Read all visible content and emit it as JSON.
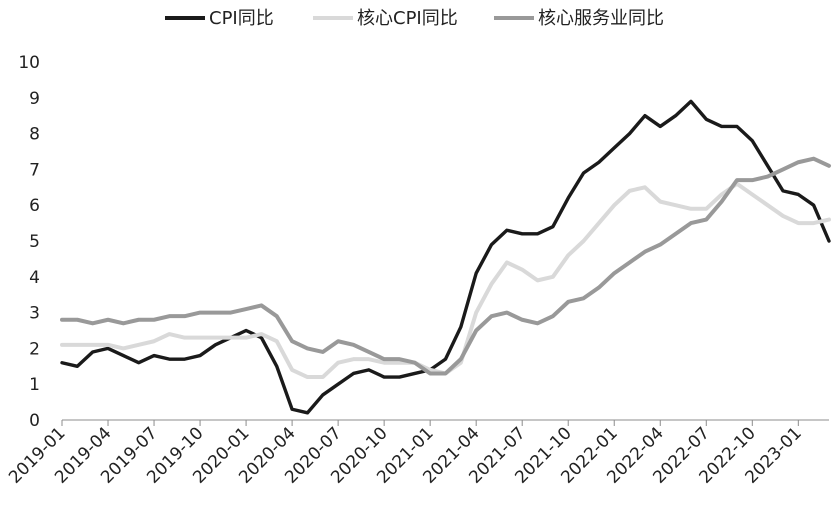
{
  "chart_data": {
    "type": "line",
    "title": "",
    "xlabel": "",
    "ylabel": "",
    "ylim": [
      0,
      10
    ],
    "yticks": [
      "0",
      "1",
      "2",
      "3",
      "4",
      "5",
      "6",
      "7",
      "8",
      "9",
      "10"
    ],
    "x_tick_labels": [
      "2019-01",
      "2019-04",
      "2019-07",
      "2019-10",
      "2020-01",
      "2020-04",
      "2020-07",
      "2020-10",
      "2021-01",
      "2021-04",
      "2021-07",
      "2021-10",
      "2022-01",
      "2022-04",
      "2022-07",
      "2022-10",
      "2023-01"
    ],
    "x": [
      "2019-01",
      "2019-02",
      "2019-03",
      "2019-04",
      "2019-05",
      "2019-06",
      "2019-07",
      "2019-08",
      "2019-09",
      "2019-10",
      "2019-11",
      "2019-12",
      "2020-01",
      "2020-02",
      "2020-03",
      "2020-04",
      "2020-05",
      "2020-06",
      "2020-07",
      "2020-08",
      "2020-09",
      "2020-10",
      "2020-11",
      "2020-12",
      "2021-01",
      "2021-02",
      "2021-03",
      "2021-04",
      "2021-05",
      "2021-06",
      "2021-07",
      "2021-08",
      "2021-09",
      "2021-10",
      "2021-11",
      "2021-12",
      "2022-01",
      "2022-02",
      "2022-03",
      "2022-04",
      "2022-05",
      "2022-06",
      "2022-07",
      "2022-08",
      "2022-09",
      "2022-10",
      "2022-11",
      "2022-12",
      "2023-01",
      "2023-02",
      "2023-03"
    ],
    "grid": false,
    "legend_position": "top",
    "series": [
      {
        "name": "CPI同比",
        "color": "#1a1a1a",
        "values": [
          1.6,
          1.5,
          1.9,
          2.0,
          1.8,
          1.6,
          1.8,
          1.7,
          1.7,
          1.8,
          2.1,
          2.3,
          2.5,
          2.3,
          1.5,
          0.3,
          0.2,
          0.7,
          1.0,
          1.3,
          1.4,
          1.2,
          1.2,
          1.3,
          1.4,
          1.7,
          2.6,
          4.1,
          4.9,
          5.3,
          5.2,
          5.2,
          5.4,
          6.2,
          6.9,
          7.2,
          7.6,
          8.0,
          8.5,
          8.2,
          8.5,
          8.9,
          8.4,
          8.2,
          8.2,
          7.8,
          7.1,
          6.4,
          6.3,
          6.0,
          5.0
        ]
      },
      {
        "name": "核心CPI同比",
        "color": "#d9d9d9",
        "values": [
          2.1,
          2.1,
          2.1,
          2.1,
          2.0,
          2.1,
          2.2,
          2.4,
          2.3,
          2.3,
          2.3,
          2.3,
          2.3,
          2.4,
          2.2,
          1.4,
          1.2,
          1.2,
          1.6,
          1.7,
          1.7,
          1.6,
          1.6,
          1.6,
          1.4,
          1.3,
          1.6,
          3.0,
          3.8,
          4.4,
          4.2,
          3.9,
          4.0,
          4.6,
          5.0,
          5.5,
          6.0,
          6.4,
          6.5,
          6.1,
          6.0,
          5.9,
          5.9,
          6.3,
          6.6,
          6.3,
          6.0,
          5.7,
          5.5,
          5.5,
          5.6
        ]
      },
      {
        "name": "核心服务业同比",
        "color": "#999999",
        "values": [
          2.8,
          2.8,
          2.7,
          2.8,
          2.7,
          2.8,
          2.8,
          2.9,
          2.9,
          3.0,
          3.0,
          3.0,
          3.1,
          3.2,
          2.9,
          2.2,
          2.0,
          1.9,
          2.2,
          2.1,
          1.9,
          1.7,
          1.7,
          1.6,
          1.3,
          1.3,
          1.7,
          2.5,
          2.9,
          3.0,
          2.8,
          2.7,
          2.9,
          3.3,
          3.4,
          3.7,
          4.1,
          4.4,
          4.7,
          4.9,
          5.2,
          5.5,
          5.6,
          6.1,
          6.7,
          6.7,
          6.8,
          7.0,
          7.2,
          7.3,
          7.1
        ]
      }
    ]
  }
}
